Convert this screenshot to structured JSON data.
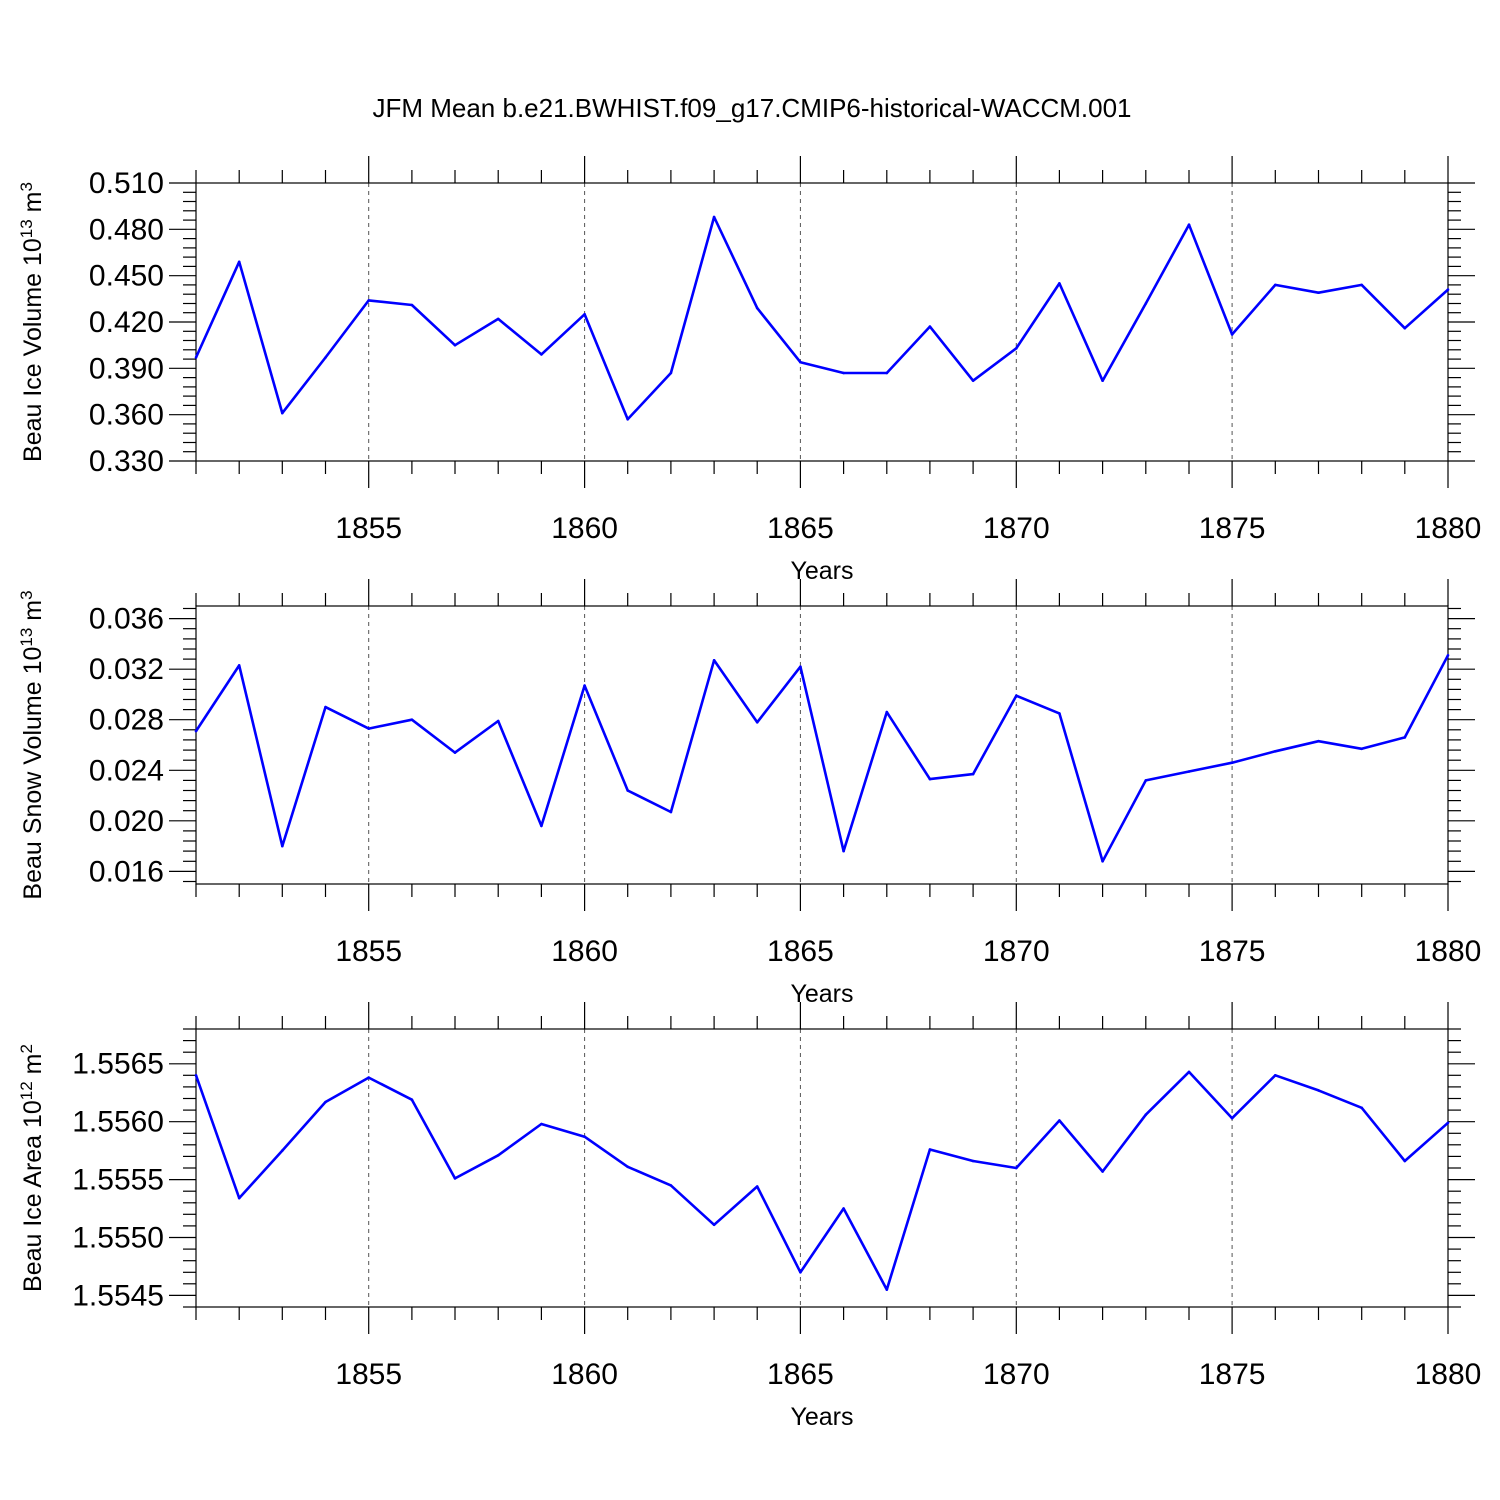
{
  "title": "JFM Mean b.e21.BWHIST.f09_g17.CMIP6-historical-WACCM.001",
  "colors": {
    "series": "#0000ff",
    "axes": "#000000",
    "grid": "#555555"
  },
  "chart_data": [
    {
      "type": "line",
      "xlabel": "Years",
      "ylabel": {
        "text": "Beau Ice Volume 10",
        "sup1": "13",
        "unit": " m",
        "sup2": "3"
      },
      "xlim": [
        1851,
        1880
      ],
      "ylim": [
        0.33,
        0.51
      ],
      "xticks": [
        1855,
        1860,
        1865,
        1870,
        1875,
        1880
      ],
      "yticks": [
        "0.330",
        "0.360",
        "0.390",
        "0.420",
        "0.450",
        "0.480",
        "0.510"
      ],
      "grid": "vertical dashed at major x ticks",
      "x": [
        1851,
        1852,
        1853,
        1854,
        1855,
        1856,
        1857,
        1858,
        1859,
        1860,
        1861,
        1862,
        1863,
        1864,
        1865,
        1866,
        1867,
        1868,
        1869,
        1870,
        1871,
        1872,
        1873,
        1874,
        1875,
        1876,
        1877,
        1878,
        1879,
        1880
      ],
      "y": [
        0.397,
        0.459,
        0.361,
        0.397,
        0.434,
        0.431,
        0.405,
        0.422,
        0.399,
        0.425,
        0.357,
        0.387,
        0.488,
        0.429,
        0.394,
        0.387,
        0.387,
        0.417,
        0.382,
        0.403,
        0.445,
        0.382,
        0.432,
        0.483,
        0.412,
        0.444,
        0.439,
        0.444,
        0.416,
        0.441
      ]
    },
    {
      "type": "line",
      "xlabel": "Years",
      "ylabel": {
        "text": "Beau Snow Volume 10",
        "sup1": "13",
        "unit": " m",
        "sup2": "3"
      },
      "xlim": [
        1851,
        1880
      ],
      "ylim": [
        0.015,
        0.037
      ],
      "xticks": [
        1855,
        1860,
        1865,
        1870,
        1875,
        1880
      ],
      "yticks": [
        "0.016",
        "0.020",
        "0.024",
        "0.028",
        "0.032",
        "0.036"
      ],
      "grid": "vertical dashed at major x ticks",
      "x": [
        1851,
        1852,
        1853,
        1854,
        1855,
        1856,
        1857,
        1858,
        1859,
        1860,
        1861,
        1862,
        1863,
        1864,
        1865,
        1866,
        1867,
        1868,
        1869,
        1870,
        1871,
        1872,
        1873,
        1874,
        1875,
        1876,
        1877,
        1878,
        1879,
        1880
      ],
      "y": [
        0.0271,
        0.0323,
        0.018,
        0.029,
        0.0273,
        0.028,
        0.0254,
        0.0279,
        0.0196,
        0.0307,
        0.0224,
        0.0207,
        0.0327,
        0.0278,
        0.0322,
        0.0176,
        0.0286,
        0.0233,
        0.0237,
        0.0299,
        0.0285,
        0.0168,
        0.0232,
        0.0239,
        0.0246,
        0.0255,
        0.0263,
        0.0257,
        0.0266,
        0.0331
      ]
    },
    {
      "type": "line",
      "xlabel": "Years",
      "ylabel": {
        "text": "Beau Ice Area 10",
        "sup1": "12",
        "unit": " m",
        "sup2": "2"
      },
      "xlim": [
        1851,
        1880
      ],
      "ylim": [
        1.5544,
        1.5568
      ],
      "xticks": [
        1855,
        1860,
        1865,
        1870,
        1875,
        1880
      ],
      "yticks": [
        "1.5545",
        "1.5550",
        "1.5555",
        "1.5560",
        "1.5565"
      ],
      "grid": "vertical dashed at major x ticks",
      "x": [
        1851,
        1852,
        1853,
        1854,
        1855,
        1856,
        1857,
        1858,
        1859,
        1860,
        1861,
        1862,
        1863,
        1864,
        1865,
        1866,
        1867,
        1868,
        1869,
        1870,
        1871,
        1872,
        1873,
        1874,
        1875,
        1876,
        1877,
        1878,
        1879,
        1880
      ],
      "y": [
        1.5564,
        1.55534,
        1.55575,
        1.55617,
        1.55638,
        1.55619,
        1.55551,
        1.55571,
        1.55598,
        1.55587,
        1.55561,
        1.55545,
        1.55511,
        1.55544,
        1.5547,
        1.55525,
        1.55455,
        1.55576,
        1.55566,
        1.5556,
        1.55601,
        1.55557,
        1.55606,
        1.55643,
        1.55603,
        1.5564,
        1.55627,
        1.55612,
        1.55566,
        1.55599
      ]
    }
  ]
}
